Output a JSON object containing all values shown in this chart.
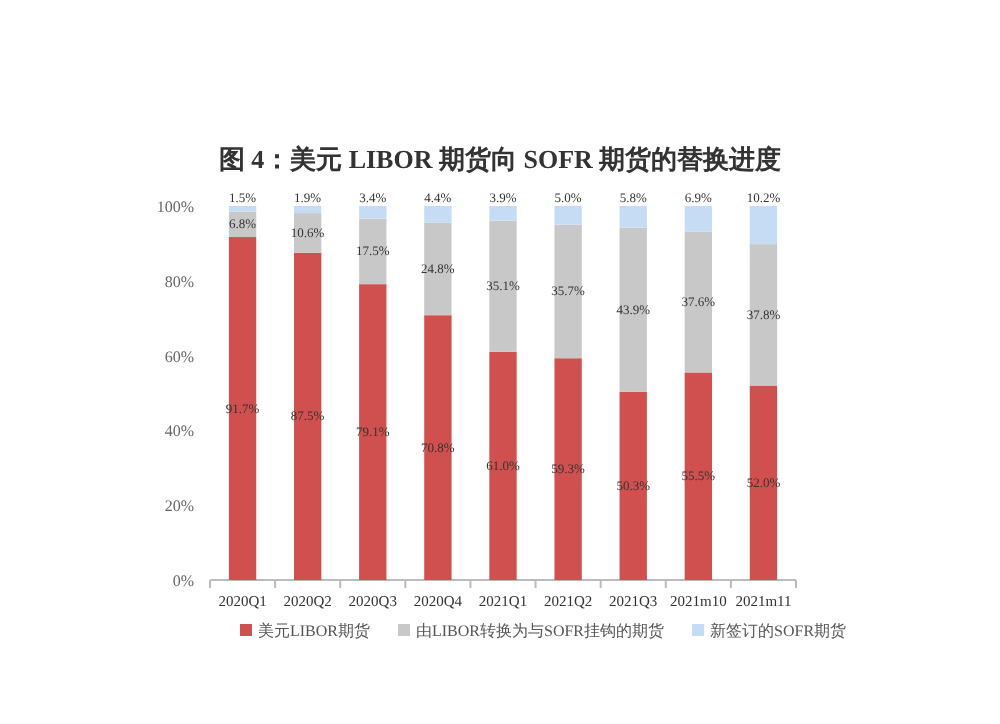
{
  "chart_data": {
    "type": "bar",
    "title": "图 4：美元 LIBOR 期货向 SOFR 期货的替换进度",
    "categories": [
      "2020Q1",
      "2020Q2",
      "2020Q3",
      "2020Q4",
      "2021Q1",
      "2021Q2",
      "2021Q3",
      "2021m10",
      "2021m11"
    ],
    "stacked": true,
    "ylim": [
      0,
      100
    ],
    "yticks": [
      {
        "value": 0,
        "label": "0%"
      },
      {
        "value": 20,
        "label": "20%"
      },
      {
        "value": 40,
        "label": "40%"
      },
      {
        "value": 60,
        "label": "60%"
      },
      {
        "value": 80,
        "label": "80%"
      },
      {
        "value": 100,
        "label": "100%"
      }
    ],
    "legend": "bottom",
    "series": [
      {
        "name": "美元LIBOR期货",
        "color": "#d0504f",
        "values": [
          91.7,
          87.5,
          79.1,
          70.8,
          61.0,
          59.3,
          50.3,
          55.5,
          52.0
        ],
        "value_labels": [
          "91.7%",
          "87.5%",
          "79.1%",
          "70.8%",
          "61.0%",
          "59.3%",
          "50.3%",
          "55.5%",
          "52.0%"
        ]
      },
      {
        "name": "由LIBOR转换为与SOFR挂钩的期货",
        "color": "#c8c8c8",
        "values": [
          6.8,
          10.6,
          17.5,
          24.8,
          35.1,
          35.7,
          43.9,
          37.6,
          37.8
        ],
        "value_labels": [
          "6.8%",
          "10.6%",
          "17.5%",
          "24.8%",
          "35.1%",
          "35.7%",
          "43.9%",
          "37.6%",
          "37.8%"
        ]
      },
      {
        "name": "新签订的SOFR期货",
        "color": "#c6dcf5",
        "values": [
          1.5,
          1.9,
          3.4,
          4.4,
          3.9,
          5.0,
          5.8,
          6.9,
          10.2
        ],
        "value_labels": [
          "1.5%",
          "1.9%",
          "3.4%",
          "4.4%",
          "3.9%",
          "5.0%",
          "5.8%",
          "6.9%",
          "10.2%"
        ]
      }
    ]
  }
}
